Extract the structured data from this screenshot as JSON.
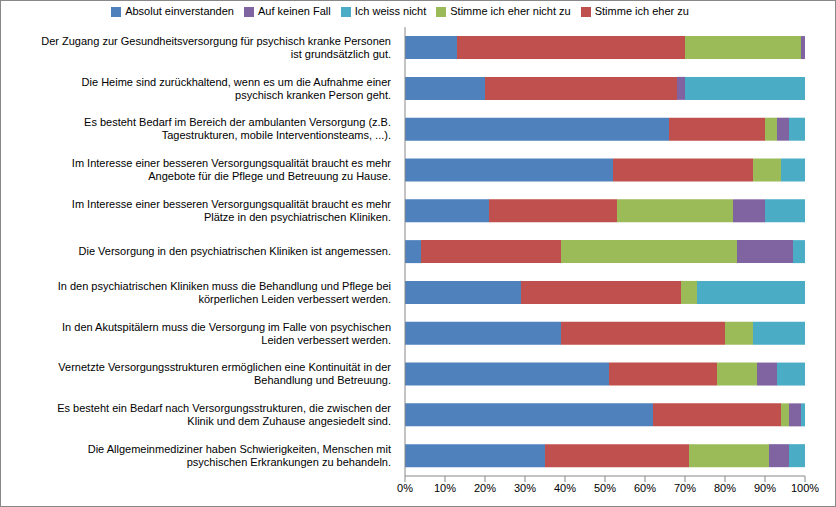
{
  "chart_data": {
    "type": "bar",
    "orientation": "horizontal",
    "stacked": true,
    "grid": false,
    "legend": "top",
    "categories": [
      "Der Zugang zur Gesundheitsversorgung für psychisch kranke Personen ist grundsätzlich gut.",
      "Die Heime sind zurückhaltend, wenn es um die Aufnahme einer psychisch kranken Person geht.",
      "Es besteht Bedarf im Bereich der ambulanten Versorgung (z.B. Tagestrukturen, mobile Interventionsteams, ...).",
      "Im Interesse einer besseren Versorgungsqualität braucht es mehr Angebote für die Pflege und Betreuung zu Hause.",
      "Im Interesse einer besseren Versorgungsqualität braucht es mehr Plätze in den psychiatrischen Kliniken.",
      "Die Versorgung in den psychiatrischen Kliniken ist angemessen.",
      "In den psychiatrischen Kliniken muss die Behandlung und Pflege bei körperlichen Leiden verbessert werden.",
      "In den Akutspitälern muss die Versorgung im Falle von psychischen Leiden verbessert werden.",
      "Vernetzte Versorgungsstrukturen ermöglichen eine Kontinuität in der Behandlung und Betreuung.",
      "Es besteht ein Bedarf nach Versorgungsstrukturen, die zwischen der Klinik und dem Zuhause angesiedelt sind.",
      "Die Allgemeinmediziner haben Schwierigkeiten, Menschen mit psychischen Erkrankungen zu behandeln."
    ],
    "series": [
      {
        "name": "Absolut einverstanden",
        "color": "#4F81BD",
        "values": [
          13,
          20,
          66,
          52,
          21,
          4,
          29,
          39,
          51,
          62,
          35
        ]
      },
      {
        "name": "Stimme ich eher zu",
        "color": "#C0504D",
        "values": [
          57,
          48,
          24,
          35,
          32,
          35,
          40,
          41,
          27,
          32,
          36
        ]
      },
      {
        "name": "Stimme ich eher nicht zu",
        "color": "#9BBB59",
        "values": [
          29,
          0,
          3,
          7,
          29,
          44,
          4,
          7,
          10,
          2,
          20
        ]
      },
      {
        "name": "Auf keinen Fall",
        "color": "#8064A2",
        "values": [
          1,
          2,
          3,
          0,
          8,
          14,
          0,
          0,
          5,
          3,
          5
        ]
      },
      {
        "name": "Ich weiss nicht",
        "color": "#4BACC6",
        "values": [
          0,
          30,
          4,
          6,
          10,
          3,
          27,
          13,
          7,
          1,
          4
        ]
      }
    ],
    "xlim": [
      0,
      100
    ],
    "xticks": [
      {
        "value": 0,
        "label": "0%"
      },
      {
        "value": 10,
        "label": "10%"
      },
      {
        "value": 20,
        "label": "20%"
      },
      {
        "value": 30,
        "label": "30%"
      },
      {
        "value": 40,
        "label": "40%"
      },
      {
        "value": 50,
        "label": "50%"
      },
      {
        "value": 60,
        "label": "60%"
      },
      {
        "value": 70,
        "label": "70%"
      },
      {
        "value": 80,
        "label": "80%"
      },
      {
        "value": 90,
        "label": "90%"
      },
      {
        "value": 100,
        "label": "100%"
      }
    ]
  }
}
